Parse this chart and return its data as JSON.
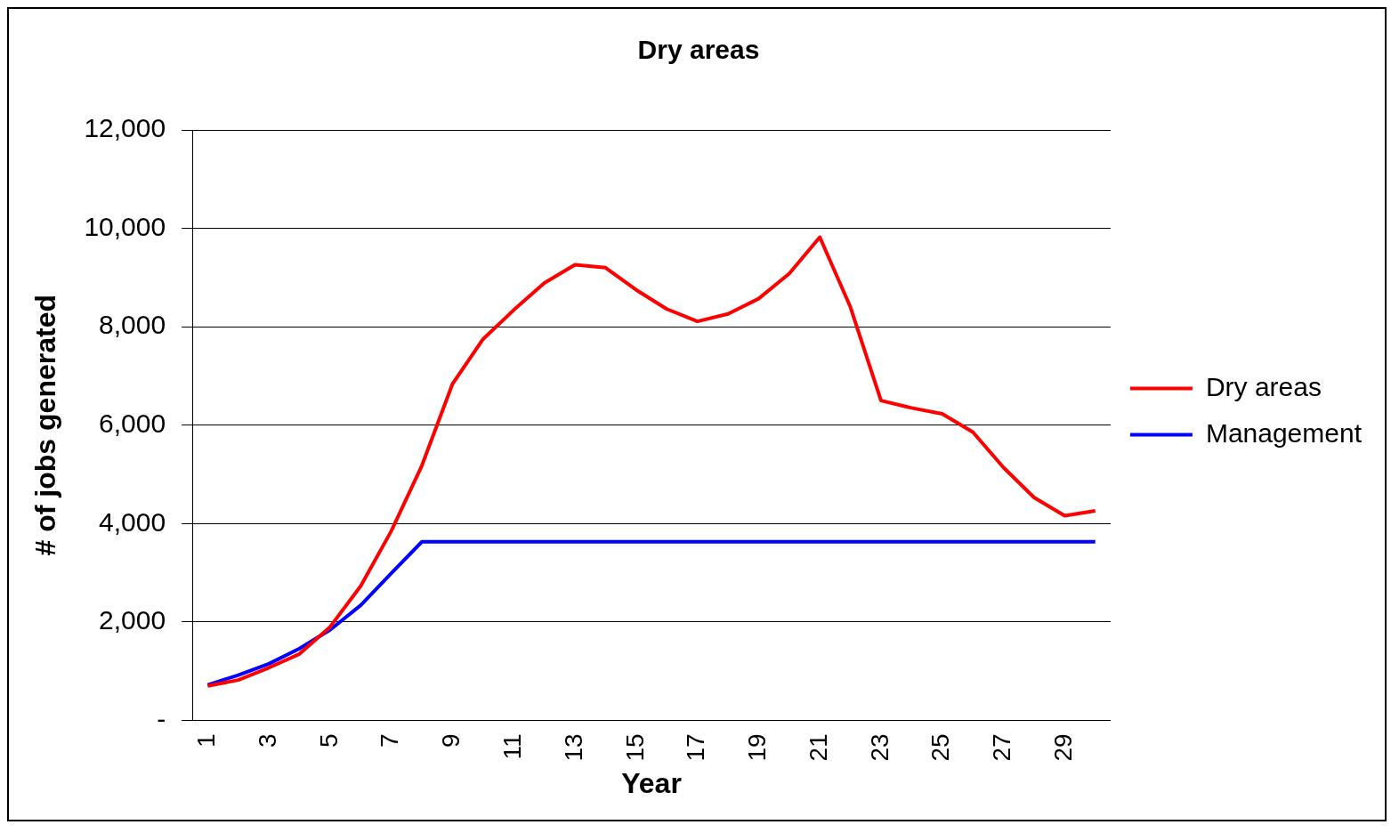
{
  "chart_data": {
    "type": "line",
    "title": "Dry areas",
    "xlabel": "Year",
    "ylabel": "# of jobs generated",
    "categories": [
      "1",
      null,
      "3",
      null,
      "5",
      null,
      "7",
      null,
      "9",
      null,
      "11",
      null,
      "13",
      null,
      "15",
      null,
      "17",
      null,
      "19",
      null,
      "21",
      null,
      "23",
      null,
      "25",
      null,
      "27",
      null,
      "29",
      null
    ],
    "series": [
      {
        "name": "Dry areas",
        "color": "#ff0000",
        "values": [
          700,
          820,
          1070,
          1350,
          1900,
          2730,
          3850,
          5180,
          6840,
          7750,
          8340,
          8890,
          9260,
          9200,
          8750,
          8360,
          8110,
          8260,
          8570,
          9080,
          9820,
          8400,
          6500,
          6350,
          6230,
          5860,
          5140,
          4530,
          4160,
          4260
        ]
      },
      {
        "name": "Management",
        "color": "#0000ff",
        "values": [
          720,
          920,
          1150,
          1460,
          1840,
          2340,
          2990,
          3630,
          3630,
          3630,
          3630,
          3630,
          3630,
          3630,
          3630,
          3630,
          3630,
          3630,
          3630,
          3630,
          3630,
          3630,
          3630,
          3630,
          3630,
          3630,
          3630,
          3630,
          3630,
          3630
        ]
      }
    ],
    "ylim": [
      0,
      12000
    ],
    "yticks": [
      {
        "value": 0,
        "label": "-"
      },
      {
        "value": 2000,
        "label": "2,000"
      },
      {
        "value": 4000,
        "label": "4,000"
      },
      {
        "value": 6000,
        "label": "6,000"
      },
      {
        "value": 8000,
        "label": "8,000"
      },
      {
        "value": 10000,
        "label": "10,000"
      },
      {
        "value": 12000,
        "label": "12,000"
      }
    ],
    "grid": "y",
    "legend": "right",
    "marker": "none",
    "line_style": "solid"
  }
}
